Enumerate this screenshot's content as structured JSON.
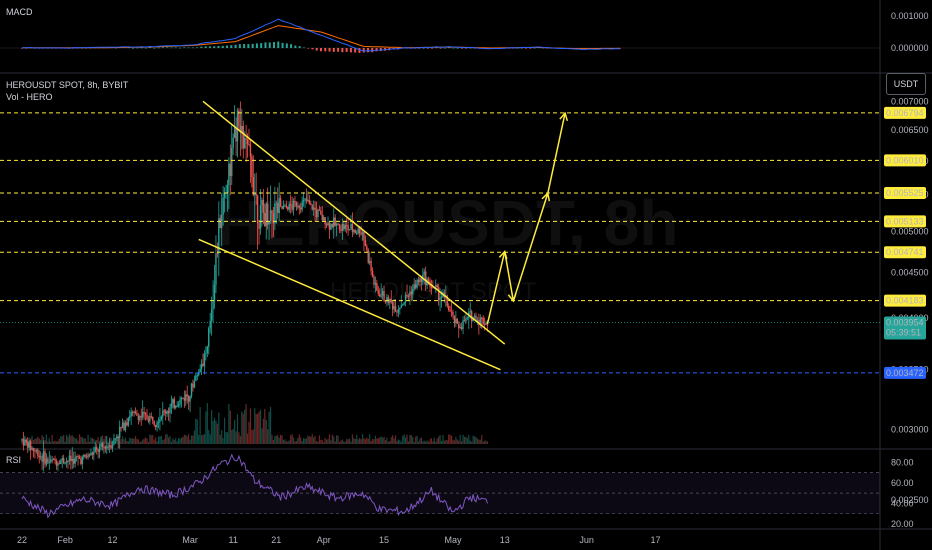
{
  "header": {
    "macd_label": "MACD",
    "symbol_line": "HEROUSDT SPOT, 8h, BYBIT",
    "vol_label": "Vol - HERO",
    "rsi_label": "RSI",
    "currency_button": "USDT",
    "watermark_main": "HEROUSDT, 8h",
    "watermark_sub": "HEROUSDT SPOT"
  },
  "colors": {
    "up": "#26a69a",
    "down": "#ef5350",
    "level": "#ffeb3b",
    "blue_level": "#2962ff",
    "trend": "#ffeb3b",
    "rsi": "#7e57c2",
    "macd": "#2962ff",
    "signal": "#ff6d00"
  },
  "chart_data": [
    {
      "type": "candlestick",
      "title": "HEROUSDT SPOT, 8h, BYBIT",
      "scale": "log",
      "ylim": [
        0.0023,
        0.0073
      ],
      "xlim": [
        "2024-01-22",
        "2024-06-23"
      ],
      "y_ticks": [
        "0.007000",
        "0.006500",
        "0.006000",
        "0.005500",
        "0.005000",
        "0.004500",
        "0.004000",
        "0.003500",
        "0.003000",
        "0.002500"
      ],
      "x_ticks": [
        "22",
        "Feb",
        "12",
        "Mar",
        "11",
        "21",
        "Apr",
        "15",
        "May",
        "13",
        "Jun",
        "17"
      ],
      "ohlc_anchors": [
        [
          "2024-01-22",
          0.00292
        ],
        [
          "2024-01-28",
          0.00276
        ],
        [
          "2024-02-05",
          0.00278
        ],
        [
          "2024-02-12",
          0.0029
        ],
        [
          "2024-02-16",
          0.00312
        ],
        [
          "2024-02-22",
          0.00308
        ],
        [
          "2024-03-01",
          0.0033
        ],
        [
          "2024-03-05",
          0.0037
        ],
        [
          "2024-03-08",
          0.0052
        ],
        [
          "2024-03-12",
          0.0066
        ],
        [
          "2024-03-15",
          0.006
        ],
        [
          "2024-03-17",
          0.0052
        ],
        [
          "2024-03-22",
          0.0053
        ],
        [
          "2024-03-28",
          0.0054
        ],
        [
          "2024-04-02",
          0.0051
        ],
        [
          "2024-04-10",
          0.005
        ],
        [
          "2024-04-13",
          0.0043
        ],
        [
          "2024-04-18",
          0.0041
        ],
        [
          "2024-04-24",
          0.00445
        ],
        [
          "2024-04-29",
          0.0042
        ],
        [
          "2024-05-02",
          0.0039
        ],
        [
          "2024-05-05",
          0.00402
        ],
        [
          "2024-05-09",
          0.00395
        ]
      ],
      "levels": [
        {
          "value": "0.006794",
          "color": "yellow"
        },
        {
          "value": "0.006010",
          "color": "yellow"
        },
        {
          "value": "0.005525",
          "color": "yellow"
        },
        {
          "value": "0.005133",
          "color": "yellow"
        },
        {
          "value": "0.004741",
          "color": "yellow"
        },
        {
          "value": "0.004183",
          "color": "yellow"
        },
        {
          "value": "0.003472",
          "color": "blue"
        }
      ],
      "last_price": {
        "value": "0.003954",
        "countdown": "05:39:51"
      },
      "trendlines": [
        {
          "name": "upper",
          "from": [
            "2024-03-04",
            0.007
          ],
          "to": [
            "2024-05-13",
            0.00374
          ]
        },
        {
          "name": "lower",
          "from": [
            "2024-03-03",
            0.0049
          ],
          "to": [
            "2024-05-12",
            0.0035
          ]
        }
      ],
      "projection": [
        [
          "2024-05-09",
          0.00394
        ],
        [
          "2024-05-13",
          0.00475
        ],
        [
          "2024-05-15",
          0.00418
        ],
        [
          "2024-05-23",
          0.00552
        ],
        [
          "2024-05-27",
          0.00679
        ]
      ]
    },
    {
      "type": "line",
      "title": "MACD",
      "y_ticks": [
        "0.001000",
        "0.000000"
      ],
      "series": [
        {
          "name": "MACD",
          "values": [
            1e-05,
            0.0,
            2e-05,
            4e-05,
            0.0001,
            0.0003,
            0.0009,
            0.0004,
            -0.0001,
            0.0,
            4e-05,
            -2e-05,
            3e-05,
            -4e-05,
            -2e-05
          ]
        },
        {
          "name": "Signal",
          "values": [
            1e-05,
            1e-05,
            1e-05,
            3e-05,
            8e-05,
            0.0002,
            0.0007,
            0.0005,
            5e-05,
            1e-05,
            3e-05,
            0.0,
            2e-05,
            -2e-05,
            -1e-05
          ]
        }
      ]
    },
    {
      "type": "line",
      "title": "RSI",
      "y_ticks": [
        "80.00",
        "60.00",
        "40.00",
        "20.00"
      ],
      "ylim": [
        18,
        92
      ],
      "bands": [
        70,
        50,
        30
      ],
      "x_dates": [
        "2024-01-22",
        "2024-01-28",
        "2024-02-05",
        "2024-02-12",
        "2024-02-18",
        "2024-02-26",
        "2024-03-03",
        "2024-03-08",
        "2024-03-12",
        "2024-03-16",
        "2024-03-22",
        "2024-03-28",
        "2024-04-04",
        "2024-04-10",
        "2024-04-14",
        "2024-04-20",
        "2024-04-26",
        "2024-05-01",
        "2024-05-05",
        "2024-05-09"
      ],
      "values": [
        45,
        30,
        44,
        38,
        55,
        48,
        60,
        78,
        86,
        62,
        46,
        56,
        45,
        50,
        34,
        32,
        52,
        31,
        46,
        42
      ]
    }
  ]
}
